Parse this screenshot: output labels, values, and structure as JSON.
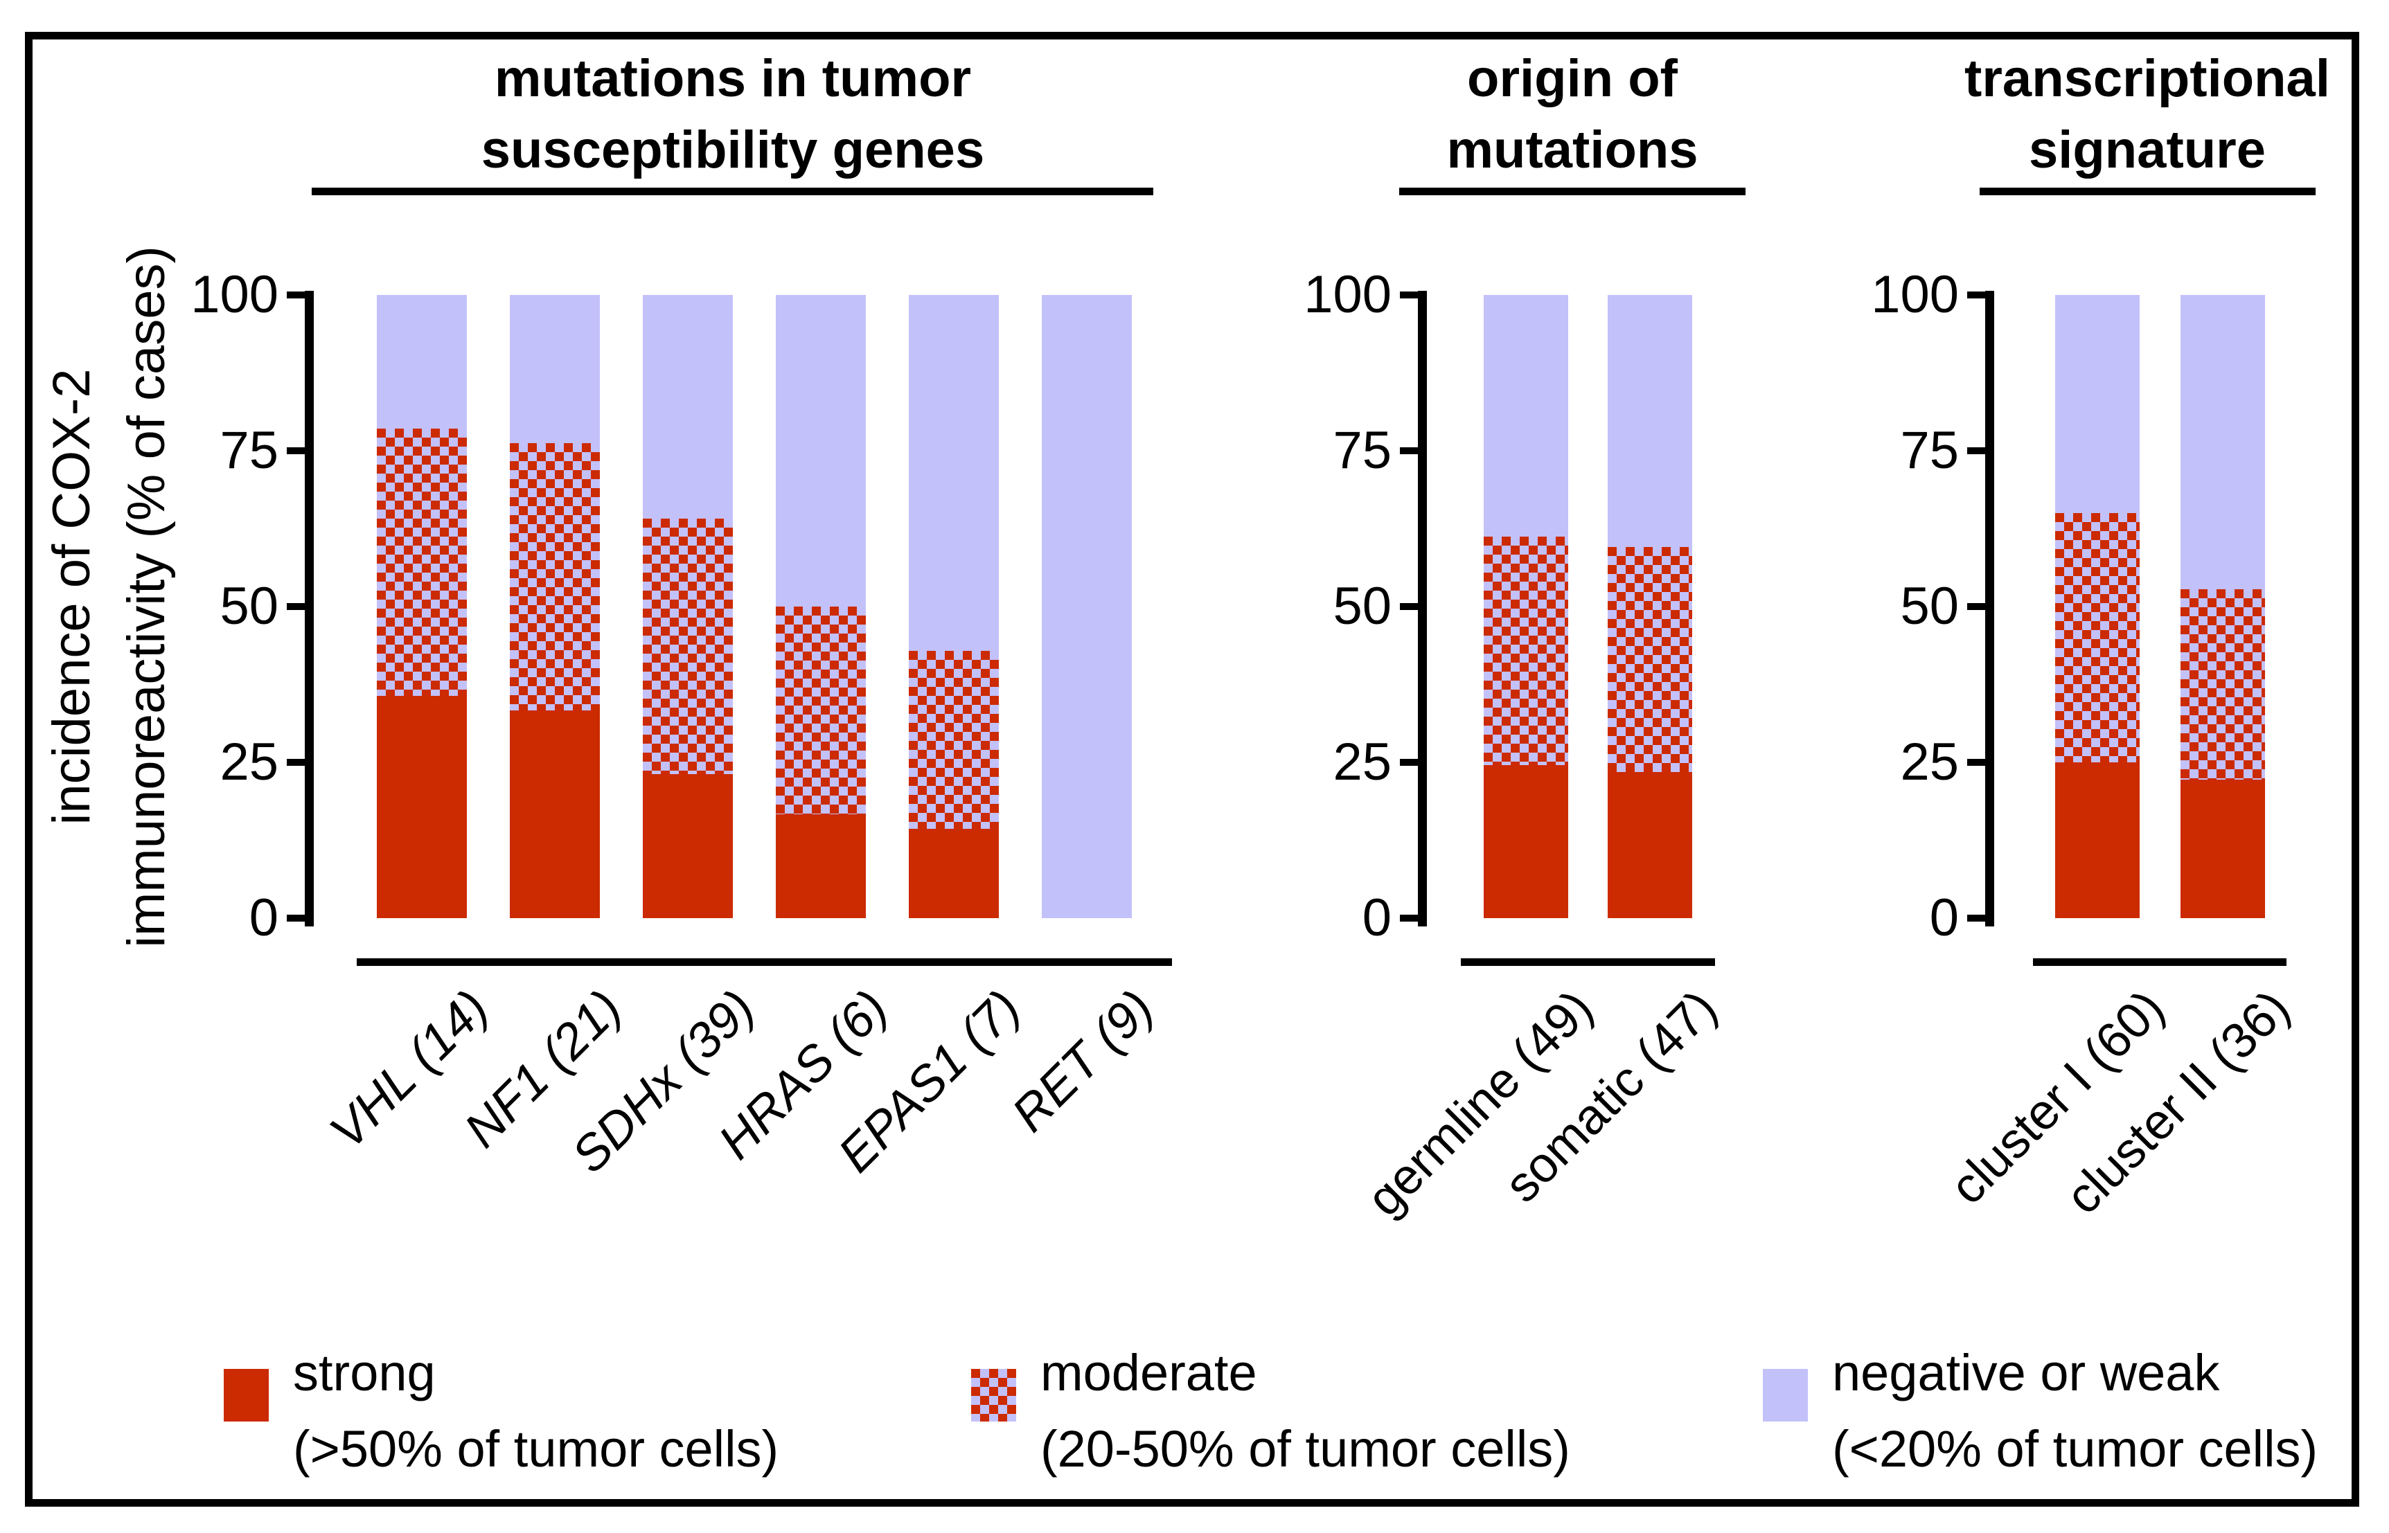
{
  "y_axis": {
    "label_line1": "incidence of COX-2",
    "label_line2": "immunoreactivity (% of cases)"
  },
  "legend": {
    "items": [
      {
        "label": "strong",
        "sublabel": "(>50% of tumor cells)",
        "swatch": "solid-red"
      },
      {
        "label": "moderate",
        "sublabel": "(20-50% of tumor cells)",
        "swatch": "red-checkered"
      },
      {
        "label": "negative or weak",
        "sublabel": "(<20% of tumor cells)",
        "swatch": "light-purple"
      }
    ]
  },
  "colors": {
    "strong_red": "#CC2A00",
    "weak_lavender": "#C3C1FA",
    "axis_black": "#000000"
  },
  "chart_data": {
    "type": "bar",
    "stacked": true,
    "ylabel": "incidence of COX-2 immunoreactivity (% of cases)",
    "ylim": [
      0,
      100
    ],
    "yticks": [
      100,
      75,
      50,
      25,
      0
    ],
    "grid": false,
    "legend_position": "bottom",
    "series_names": [
      "strong",
      "moderate",
      "negative or weak"
    ],
    "panels": [
      {
        "title": [
          "mutations in tumor",
          "susceptibility genes"
        ],
        "categories": [
          "VHL (14)",
          "NF1 (21)",
          "SDHx (39)",
          "HRAS (6)",
          "EPAS1 (7)",
          "RET (9)"
        ],
        "italic_categories": true,
        "series": [
          {
            "name": "strong",
            "values": [
              35.7,
              33.3,
              23.1,
              16.7,
              14.3,
              0
            ]
          },
          {
            "name": "moderate",
            "values": [
              42.9,
              42.9,
              41.0,
              33.3,
              28.6,
              0
            ]
          },
          {
            "name": "negative or weak",
            "values": [
              21.4,
              23.8,
              35.9,
              50.0,
              57.1,
              100
            ]
          }
        ]
      },
      {
        "title": [
          "origin of",
          "mutations"
        ],
        "categories": [
          "germline (49)",
          "somatic (47)"
        ],
        "italic_categories": false,
        "series": [
          {
            "name": "strong",
            "values": [
              24.5,
              23.4
            ]
          },
          {
            "name": "moderate",
            "values": [
              36.7,
              36.2
            ]
          },
          {
            "name": "negative or weak",
            "values": [
              38.8,
              40.4
            ]
          }
        ]
      },
      {
        "title": [
          "transcriptional",
          "signature"
        ],
        "categories": [
          "cluster I (60)",
          "cluster II (36)"
        ],
        "italic_categories": false,
        "series": [
          {
            "name": "strong",
            "values": [
              25.0,
              22.2
            ]
          },
          {
            "name": "moderate",
            "values": [
              40.0,
              30.6
            ]
          },
          {
            "name": "negative or weak",
            "values": [
              35.0,
              47.2
            ]
          }
        ]
      }
    ]
  }
}
